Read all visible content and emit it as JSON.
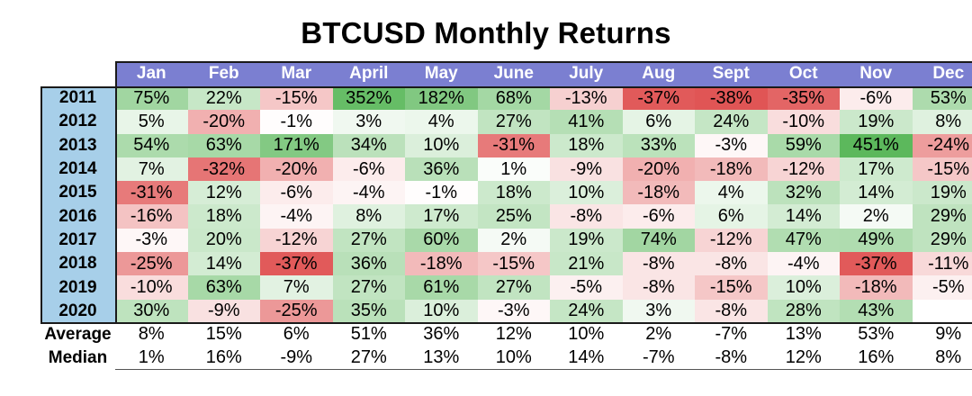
{
  "title": "BTCUSD Monthly Returns",
  "chart_data": {
    "type": "table",
    "title": "BTCUSD Monthly Returns",
    "months": [
      "Jan",
      "Feb",
      "Mar",
      "April",
      "May",
      "June",
      "July",
      "Aug",
      "Sept",
      "Oct",
      "Nov",
      "Dec"
    ],
    "years": [
      "2011",
      "2012",
      "2013",
      "2014",
      "2015",
      "2016",
      "2017",
      "2018",
      "2019",
      "2020"
    ],
    "values": [
      [
        "75%",
        "22%",
        "-15%",
        "352%",
        "182%",
        "68%",
        "-13%",
        "-37%",
        "-38%",
        "-35%",
        "-6%",
        "53%"
      ],
      [
        "5%",
        "-20%",
        "-1%",
        "3%",
        "4%",
        "27%",
        "41%",
        "6%",
        "24%",
        "-10%",
        "19%",
        "8%"
      ],
      [
        "54%",
        "63%",
        "171%",
        "34%",
        "10%",
        "-31%",
        "18%",
        "33%",
        "-3%",
        "59%",
        "451%",
        "-24%"
      ],
      [
        "7%",
        "-32%",
        "-20%",
        "-6%",
        "36%",
        "1%",
        "-9%",
        "-20%",
        "-18%",
        "-12%",
        "17%",
        "-15%"
      ],
      [
        "-31%",
        "12%",
        "-6%",
        "-4%",
        "-1%",
        "18%",
        "10%",
        "-18%",
        "4%",
        "32%",
        "14%",
        "19%"
      ],
      [
        "-16%",
        "18%",
        "-4%",
        "8%",
        "17%",
        "25%",
        "-8%",
        "-6%",
        "6%",
        "14%",
        "2%",
        "29%"
      ],
      [
        "-3%",
        "20%",
        "-12%",
        "27%",
        "60%",
        "2%",
        "19%",
        "74%",
        "-12%",
        "47%",
        "49%",
        "29%"
      ],
      [
        "-25%",
        "14%",
        "-37%",
        "36%",
        "-18%",
        "-15%",
        "21%",
        "-8%",
        "-8%",
        "-4%",
        "-37%",
        "-11%"
      ],
      [
        "-10%",
        "63%",
        "7%",
        "27%",
        "61%",
        "27%",
        "-5%",
        "-8%",
        "-15%",
        "10%",
        "-18%",
        "-5%"
      ],
      [
        "30%",
        "-9%",
        "-25%",
        "35%",
        "10%",
        "-3%",
        "24%",
        "3%",
        "-8%",
        "28%",
        "43%",
        ""
      ]
    ],
    "summary": [
      {
        "label": "Average",
        "values": [
          "8%",
          "15%",
          "6%",
          "51%",
          "36%",
          "12%",
          "10%",
          "2%",
          "-7%",
          "13%",
          "53%",
          "9%"
        ]
      },
      {
        "label": "Median",
        "values": [
          "1%",
          "16%",
          "-9%",
          "27%",
          "13%",
          "10%",
          "14%",
          "-7%",
          "-8%",
          "12%",
          "16%",
          "8%"
        ]
      }
    ],
    "colors": {
      "header_bg": "#7b7fd1",
      "year_bg": "#a7cfe9",
      "positive": "#5cb85c",
      "negative": "#e05555"
    }
  }
}
